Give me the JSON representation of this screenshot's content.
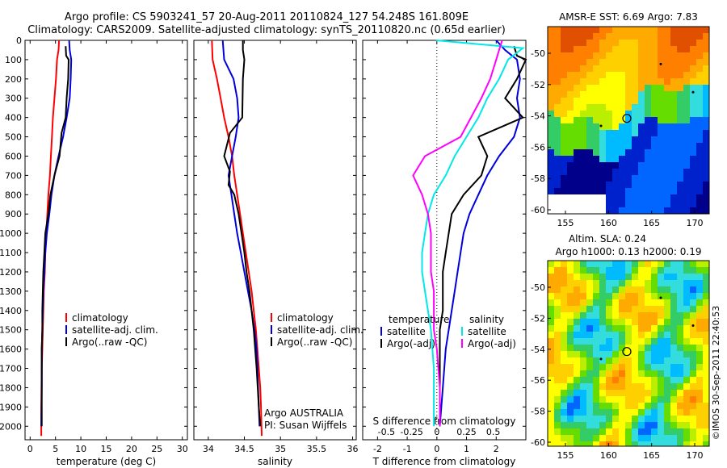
{
  "title": {
    "line1": "Argo profile: CS 5903241_57 20-Aug-2011 20110824_127 54.248S 161.809E",
    "line2": "Climatology: CARS2009. Satellite-adjusted climatology: synTS_20110820.nc (0.65d earlier)"
  },
  "colors": {
    "clim": "#ff0000",
    "sat": "#0000dd",
    "argo": "#000000",
    "sal_sat": "#00e8e8",
    "sal_argo": "#ff00ff",
    "marker_fill": "#ffcc00"
  },
  "chart_data": [
    {
      "type": "line",
      "panel": "temperature",
      "xlabel": "temperature (deg C)",
      "xlim": [
        -1,
        31
      ],
      "xticks": [
        0,
        5,
        10,
        15,
        20,
        25,
        30
      ],
      "ylim": [
        2070,
        0
      ],
      "yticks": [
        0,
        100,
        200,
        300,
        400,
        500,
        600,
        700,
        800,
        900,
        1000,
        1100,
        1200,
        1300,
        1400,
        1500,
        1600,
        1700,
        1800,
        1900,
        2000
      ],
      "series": [
        {
          "name": "climatology",
          "color": "clim",
          "x": [
            5.7,
            5.6,
            5.3,
            5.1,
            4.8,
            4.5,
            4.3,
            4.1,
            3.9,
            3.6,
            3.4,
            3.2,
            3.0,
            2.9,
            2.7,
            2.6,
            2.5,
            2.4,
            2.3,
            2.2,
            2.2
          ],
          "y": [
            0,
            50,
            100,
            200,
            300,
            400,
            500,
            600,
            700,
            800,
            900,
            1000,
            1100,
            1200,
            1300,
            1400,
            1500,
            1600,
            1700,
            1900,
            2050
          ]
        },
        {
          "name": "satellite-adj. clim.",
          "color": "sat",
          "x": [
            7.7,
            7.8,
            8.1,
            8.0,
            7.8,
            7.2,
            6.5,
            5.6,
            4.8,
            4.2,
            3.8,
            3.3,
            3.0,
            2.8,
            2.6,
            2.5,
            2.4,
            2.3,
            2.3,
            2.2
          ],
          "y": [
            0,
            50,
            100,
            200,
            300,
            400,
            500,
            600,
            700,
            800,
            900,
            1000,
            1100,
            1200,
            1300,
            1400,
            1500,
            1600,
            1800,
            2000
          ]
        },
        {
          "name": "Argo(..raw -QC)",
          "color": "argo",
          "x": [
            7.0,
            7.1,
            7.6,
            7.5,
            7.2,
            7.0,
            6.2,
            5.8,
            4.8,
            4.0,
            3.6,
            3.0,
            2.8,
            2.6,
            2.5,
            2.4,
            2.4,
            2.3,
            2.3,
            2.3
          ],
          "y": [
            30,
            80,
            100,
            200,
            300,
            400,
            480,
            600,
            700,
            800,
            900,
            1000,
            1100,
            1200,
            1300,
            1400,
            1500,
            1600,
            1800,
            2000
          ]
        }
      ],
      "legend": [
        "climatology",
        "satellite-adj. clim.",
        "Argo(..raw -QC)"
      ]
    },
    {
      "type": "line",
      "panel": "salinity",
      "xlabel": "salinity",
      "xlim": [
        33.8,
        36.05
      ],
      "xticks": [
        34,
        34.5,
        35,
        35.5,
        36
      ],
      "ylim": [
        2070,
        0
      ],
      "series": [
        {
          "name": "climatology",
          "color": "clim",
          "x": [
            34.05,
            34.06,
            34.12,
            34.17,
            34.22,
            34.28,
            34.33,
            34.36,
            34.4,
            34.44,
            34.48,
            34.52,
            34.56,
            34.6,
            34.63,
            34.66,
            34.68,
            34.7,
            34.72,
            34.73,
            34.74
          ],
          "y": [
            0,
            100,
            200,
            300,
            400,
            500,
            600,
            700,
            800,
            900,
            1000,
            1100,
            1200,
            1300,
            1400,
            1500,
            1600,
            1700,
            1800,
            1900,
            2050
          ]
        },
        {
          "name": "satellite-adj. clim.",
          "color": "sat",
          "x": [
            34.2,
            34.22,
            34.35,
            34.4,
            34.42,
            34.38,
            34.33,
            34.28,
            34.32,
            34.36,
            34.4,
            34.45,
            34.5,
            34.55,
            34.6,
            34.64,
            34.67,
            34.69,
            34.71
          ],
          "y": [
            0,
            100,
            200,
            300,
            400,
            500,
            600,
            700,
            800,
            900,
            1000,
            1100,
            1200,
            1300,
            1400,
            1500,
            1600,
            1800,
            2000
          ]
        },
        {
          "name": "Argo(..raw -QC)",
          "color": "argo",
          "x": [
            34.48,
            34.48,
            34.5,
            34.48,
            34.47,
            34.3,
            34.22,
            34.3,
            34.28,
            34.36,
            34.42,
            34.46,
            34.5,
            34.53,
            34.57,
            34.6,
            34.63,
            34.67,
            34.7,
            34.72
          ],
          "y": [
            0,
            50,
            100,
            200,
            400,
            480,
            600,
            680,
            750,
            800,
            900,
            1000,
            1100,
            1200,
            1300,
            1400,
            1500,
            1700,
            1900,
            2000
          ]
        }
      ],
      "legend": [
        "climatology",
        "satellite-adj. clim.",
        "Argo(..raw -QC)"
      ],
      "annotations": [
        "Argo AUSTRALIA",
        "PI: Susan Wijffels"
      ]
    },
    {
      "type": "line",
      "panel": "difference",
      "xlabel": "T difference from climatology",
      "xlabel2": "S difference from climatology",
      "xlim": [
        -2.5,
        3.0
      ],
      "xticks": [
        -2,
        -1,
        0,
        1,
        2
      ],
      "sticks": [
        "-0.5",
        "-0.25",
        "0",
        "0.25",
        "0.5"
      ],
      "ylim": [
        2070,
        0
      ],
      "series": [
        {
          "name": "satellite",
          "group": "temperature",
          "color": "sat",
          "x": [
            2.0,
            2.3,
            2.7,
            2.8,
            2.7,
            2.8,
            2.6,
            2.1,
            1.7,
            1.4,
            1.1,
            0.9,
            0.8,
            0.7,
            0.6,
            0.5,
            0.4,
            0.3,
            0.2,
            0.1
          ],
          "y": [
            0,
            50,
            100,
            200,
            300,
            400,
            500,
            600,
            700,
            800,
            900,
            1000,
            1100,
            1200,
            1300,
            1400,
            1500,
            1600,
            1800,
            2000
          ]
        },
        {
          "name": "Argo(-adj)",
          "group": "temperature",
          "color": "argo",
          "x": [
            2.6,
            2.7,
            3.0,
            2.7,
            2.3,
            2.9,
            1.4,
            1.7,
            1.5,
            0.9,
            0.5,
            0.4,
            0.3,
            0.2,
            0.2,
            0.2,
            0.1,
            0.1,
            0.1,
            0.1
          ],
          "y": [
            30,
            80,
            100,
            200,
            300,
            400,
            500,
            600,
            700,
            800,
            900,
            1000,
            1100,
            1200,
            1300,
            1400,
            1500,
            1600,
            1800,
            2000
          ]
        },
        {
          "name": "satellite",
          "group": "salinity",
          "color": "sal_sat",
          "x": [
            -0.03,
            2.9,
            2.4,
            2.1,
            1.7,
            1.4,
            1.0,
            0.6,
            0.3,
            -0.1,
            -0.3,
            -0.4,
            -0.5,
            -0.5,
            -0.4,
            -0.3,
            -0.2,
            -0.1,
            -0.1
          ],
          "y": [
            0,
            40,
            100,
            200,
            300,
            400,
            500,
            600,
            700,
            800,
            900,
            1000,
            1100,
            1200,
            1300,
            1400,
            1500,
            1700,
            2000
          ]
        },
        {
          "name": "Argo(-adj)",
          "group": "salinity",
          "color": "sal_argo",
          "x": [
            2.2,
            2.1,
            2.0,
            1.8,
            1.5,
            0.8,
            -0.4,
            -0.8,
            -0.5,
            -0.3,
            -0.2,
            -0.2,
            -0.2,
            -0.1,
            -0.1,
            -0.1,
            0.0,
            0.1,
            0.1
          ],
          "y": [
            0,
            50,
            100,
            200,
            300,
            500,
            600,
            700,
            800,
            900,
            1000,
            1100,
            1200,
            1300,
            1400,
            1500,
            1600,
            1800,
            2000
          ]
        }
      ],
      "legend_headers": [
        "temperature",
        "salinity"
      ],
      "legend": [
        "satellite",
        "Argo(-adj)",
        "satellite",
        "Argo(-adj)"
      ]
    }
  ],
  "maps": {
    "sst": {
      "title": "AMSR-E SST: 6.69 Argo: 7.83",
      "xticks": [
        "155",
        "160",
        "165",
        "170"
      ],
      "yticks": [
        "-50",
        "-52",
        "-54",
        "-56",
        "-58",
        "-60"
      ]
    },
    "sla": {
      "title1": "Altim. SLA: 0.24",
      "title2": "Argo h1000: 0.13 h2000: 0.19",
      "xticks": [
        "155",
        "160",
        "165",
        "170"
      ],
      "yticks": [
        "-50",
        "-52",
        "-54",
        "-56",
        "-58",
        "-60"
      ]
    }
  },
  "credit": "©IMOS 30-Sep-2011 22:40:53"
}
